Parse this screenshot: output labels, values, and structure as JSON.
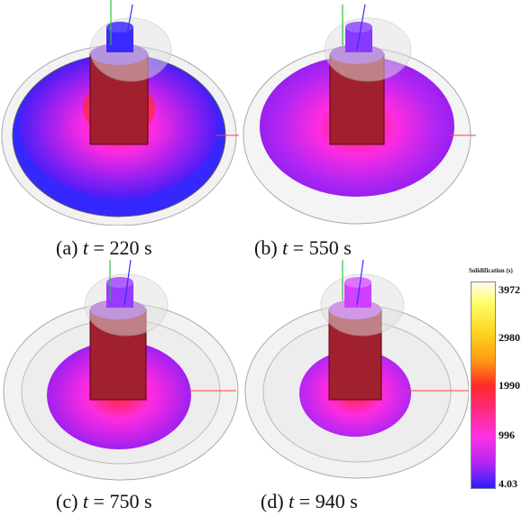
{
  "panels": [
    {
      "label": "(a)",
      "var": "t",
      "eq": "= 220 s"
    },
    {
      "label": "(b)",
      "var": "t",
      "eq": "= 550 s"
    },
    {
      "label": "(c)",
      "var": "t",
      "eq": "= 750 s"
    },
    {
      "label": "(d)",
      "var": "t",
      "eq": "= 940 s"
    }
  ],
  "legend": {
    "title": "Solidification (s)",
    "ticks": [
      "3972",
      "2980",
      "1990",
      "996",
      "4.03"
    ]
  },
  "colors": {
    "blue": "#2a1eff",
    "purple": "#a020f0",
    "magenta": "#ff2be0",
    "red": "#ff2a30",
    "orange": "#ff9a14",
    "yellow": "#ffff66"
  }
}
